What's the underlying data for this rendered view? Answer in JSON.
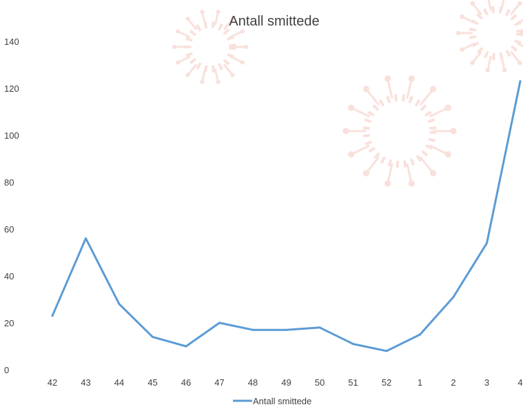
{
  "chart_data": {
    "type": "line",
    "title": "Antall smittede",
    "xlabel": "",
    "ylabel": "",
    "categories": [
      "42",
      "43",
      "44",
      "45",
      "46",
      "47",
      "48",
      "49",
      "50",
      "51",
      "52",
      "1",
      "2",
      "3",
      "4"
    ],
    "series": [
      {
        "name": "Antall smittede",
        "values": [
          23,
          56,
          28,
          14,
          10,
          20,
          17,
          17,
          18,
          11,
          8,
          15,
          31,
          54,
          123
        ],
        "color": "#5b9bd5"
      }
    ],
    "yticks": [
      "0",
      "20",
      "40",
      "60",
      "80",
      "100",
      "120",
      "140"
    ],
    "ylim": [
      0,
      140
    ],
    "grid": false,
    "legend_position": "bottom",
    "decoration": "virus-watermark",
    "decoration_color": "#f4c9c0"
  }
}
